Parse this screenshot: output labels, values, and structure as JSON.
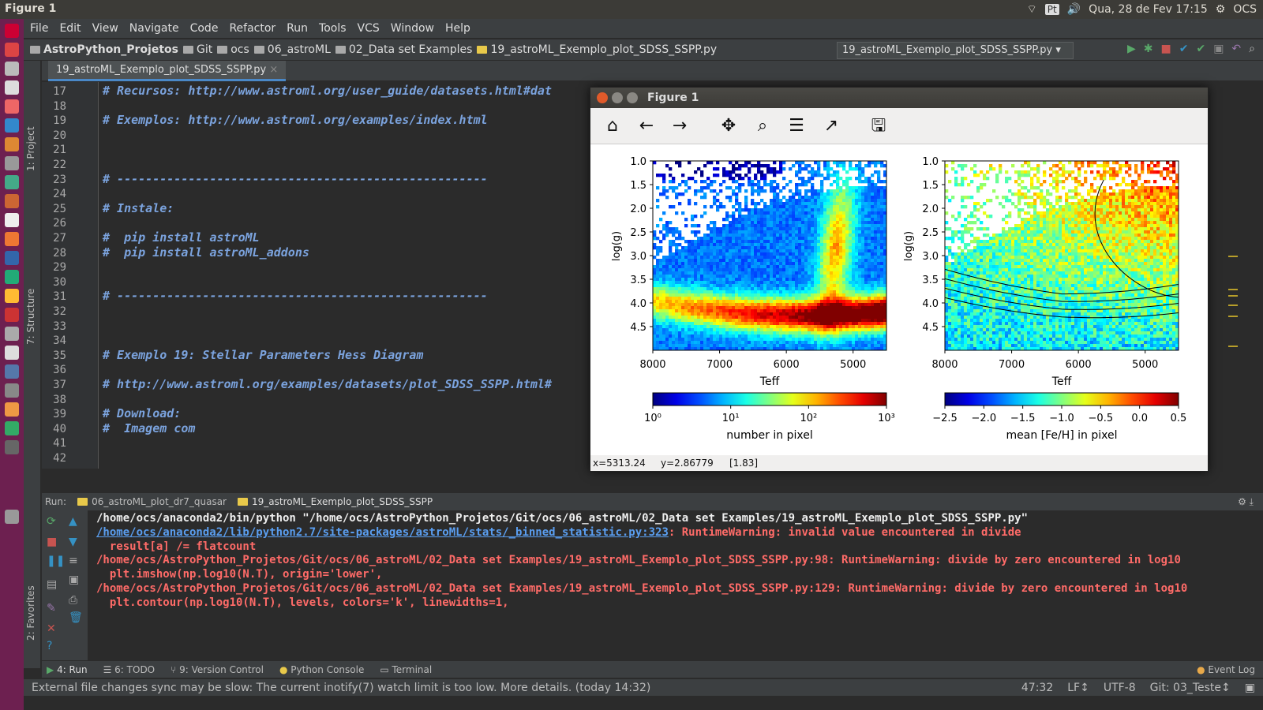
{
  "topbar": {
    "title": "Figure 1",
    "lang": "Pt",
    "datetime": "Qua, 28 de Fev 17:15",
    "user": "OCS"
  },
  "menu": [
    "File",
    "Edit",
    "View",
    "Navigate",
    "Code",
    "Refactor",
    "Run",
    "Tools",
    "VCS",
    "Window",
    "Help"
  ],
  "breadcrumbs": [
    "AstroPython_Projetos",
    "Git",
    "ocs",
    "06_astroML",
    "02_Data set Examples",
    "19_astroML_Exemplo_plot_SDSS_SSPP.py"
  ],
  "run_config": "19_astroML_Exemplo_plot_SDSS_SSPP.py",
  "side_tabs": {
    "project": "1: Project",
    "structure": "7: Structure",
    "favorites": "2: Favorites"
  },
  "editor_tab": "19_astroML_Exemplo_plot_SDSS_SSPP.py",
  "line_numbers": [
    "17",
    "18",
    "19",
    "20",
    "21",
    "22",
    "23",
    "24",
    "25",
    "26",
    "27",
    "28",
    "29",
    "30",
    "31",
    "32",
    "33",
    "34",
    "35",
    "36",
    "37",
    "38",
    "39",
    "40",
    "41",
    "42"
  ],
  "code_lines": [
    {
      "n": "17",
      "text": "# Recursos: http://www.astroml.org/user_guide/datasets.html#dat",
      "doc": true
    },
    {
      "n": "19",
      "text": "# Exemplos: http://www.astroml.org/examples/index.html",
      "doc": true
    },
    {
      "n": "23",
      "text": "# ----------------------------------------------------",
      "doc": true
    },
    {
      "n": "25",
      "text": "# Instale:",
      "doc": true
    },
    {
      "n": "27",
      "text": "#  pip install astroML",
      "doc": true
    },
    {
      "n": "28",
      "text": "#  pip install astroML_addons",
      "doc": true
    },
    {
      "n": "31",
      "text": "# ----------------------------------------------------",
      "doc": true
    },
    {
      "n": "35",
      "text": "# Exemplo 19: Stellar Parameters Hess Diagram",
      "doc": true
    },
    {
      "n": "37",
      "text": "# http://www.astroml.org/examples/datasets/plot_SDSS_SSPP.html#",
      "doc": true
    },
    {
      "n": "39",
      "text": "# Download:",
      "doc": true
    },
    {
      "n": "40",
      "text": "#  Imagem com",
      "doc": true
    }
  ],
  "run": {
    "label": "Run:",
    "tabs": [
      "06_astroML_plot_dr7_quasar",
      "19_astroML_Exemplo_plot_SDSS_SSPP"
    ],
    "console": [
      {
        "text": "/home/ocs/anaconda2/bin/python \"/home/ocs/AstroPython_Projetos/Git/ocs/06_astroML/02_Data set Examples/19_astroML_Exemplo_plot_SDSS_SSPP.py\"",
        "kind": "w"
      },
      {
        "link": "/home/ocs/anaconda2/lib/python2.7/site-packages/astroML/stats/_binned_statistic.py:323",
        "text": ": RuntimeWarning: invalid value encountered in divide",
        "kind": "r"
      },
      {
        "text": "  result[a] /= flatcount",
        "kind": "r"
      },
      {
        "text": "/home/ocs/AstroPython_Projetos/Git/ocs/06_astroML/02_Data set Examples/19_astroML_Exemplo_plot_SDSS_SSPP.py:98: RuntimeWarning: divide by zero encountered in log10",
        "kind": "r"
      },
      {
        "text": "  plt.imshow(np.log10(N.T), origin='lower',",
        "kind": "r"
      },
      {
        "text": "/home/ocs/AstroPython_Projetos/Git/ocs/06_astroML/02_Data set Examples/19_astroML_Exemplo_plot_SDSS_SSPP.py:129: RuntimeWarning: divide by zero encountered in log10",
        "kind": "r"
      },
      {
        "text": "  plt.contour(np.log10(N.T), levels, colors='k', linewidths=1,",
        "kind": "r"
      }
    ]
  },
  "bottom_tabs": [
    "4: Run",
    "6: TODO",
    "9: Version Control",
    "Python Console",
    "Terminal"
  ],
  "event_log": "Event Log",
  "status": {
    "message": "External file changes sync may be slow: The current inotify(7) watch limit is too low. More details. (today 14:32)",
    "pos": "47:32",
    "lf": "LF↕",
    "enc": "UTF-8",
    "git": "Git: 03_Teste↕"
  },
  "figure": {
    "title": "Figure 1",
    "status": {
      "x": "x=5313.24",
      "y": "y=2.86779",
      "val": "[1.83]"
    },
    "left_colorbar": {
      "label": "number in pixel",
      "ticks": [
        "10⁰",
        "10¹",
        "10²",
        "10³"
      ]
    },
    "right_colorbar": {
      "label": "mean [Fe/H] in pixel",
      "ticks": [
        "−2.5",
        "−2.0",
        "−1.5",
        "−1.0",
        "−0.5",
        "0.0",
        "0.5"
      ]
    }
  },
  "chart_data": [
    {
      "type": "heatmap",
      "xlabel": "Teff",
      "ylabel": "log(g)",
      "x_ticks": [
        "8000",
        "7000",
        "6000",
        "5000"
      ],
      "y_ticks": [
        "1.0",
        "1.5",
        "2.0",
        "2.5",
        "3.0",
        "3.5",
        "4.0",
        "4.5"
      ],
      "xlim": [
        8000,
        4500
      ],
      "ylim": [
        5.0,
        1.0
      ],
      "colorbar": "log",
      "crange": [
        1,
        1000
      ]
    },
    {
      "type": "heatmap",
      "xlabel": "Teff",
      "ylabel": "log(g)",
      "x_ticks": [
        "8000",
        "7000",
        "6000",
        "5000"
      ],
      "y_ticks": [
        "1.0",
        "1.5",
        "2.0",
        "2.5",
        "3.0",
        "3.5",
        "4.0",
        "4.5"
      ],
      "xlim": [
        8000,
        4500
      ],
      "ylim": [
        5.0,
        1.0
      ],
      "crange": [
        -2.5,
        0.5
      ],
      "contours": true
    }
  ]
}
